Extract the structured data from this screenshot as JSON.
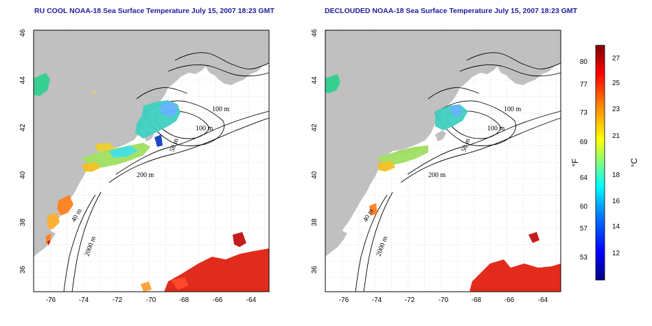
{
  "titles": {
    "left": "RU COOL NOAA-18 Sea Surface Temperature July 15, 2007 18:23 GMT",
    "right": "DECLOUDED NOAA-18 Sea Surface Temperature July 15, 2007 18:23 GMT"
  },
  "map": {
    "lat_ticks": [
      "46",
      "44",
      "42",
      "40",
      "38",
      "36"
    ],
    "lon_ticks": [
      "-76",
      "-74",
      "-72",
      "-70",
      "-68",
      "-66",
      "-64"
    ],
    "contour_labels": {
      "left": [
        "100 m",
        "100 m",
        "50 m",
        "200 m",
        "40 m",
        "2000 m"
      ],
      "right": [
        "100 m",
        "100 m",
        "50 m",
        "200 m",
        "40 m",
        "2000 m"
      ]
    }
  },
  "colorbar": {
    "f_ticks": [
      "80",
      "77",
      "73",
      "69",
      "64",
      "60",
      "57",
      "53"
    ],
    "c_ticks": [
      "27",
      "25",
      "23",
      "21",
      "18",
      "16",
      "14",
      "12"
    ],
    "f_label": "°F",
    "c_label": "°C",
    "colors": [
      "#000080",
      "#0000ff",
      "#0080ff",
      "#00ffff",
      "#80ff80",
      "#ffff00",
      "#ff8000",
      "#ff0000",
      "#800000"
    ]
  },
  "palette": {
    "land": "#c0c0c0",
    "ocean": "#ffffff",
    "contour": "#000000",
    "title": "#1c1c9c"
  }
}
